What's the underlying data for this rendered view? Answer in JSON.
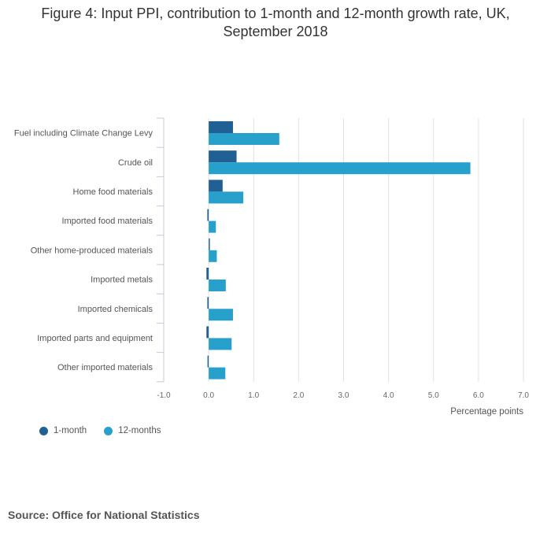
{
  "title_lines": [
    "Figure 4: Input PPI, contribution to 1-month and 12-month growth rate, UK,",
    "September 2018"
  ],
  "source": "Source: Office for National Statistics",
  "colors": {
    "one_month": "#206095",
    "twelve_months": "#27a0cc",
    "grid": "#e2e2e2",
    "axis": "#c8c8d8"
  },
  "chart_data": {
    "type": "bar",
    "orientation": "horizontal",
    "categories": [
      "Fuel including Climate Change Levy",
      "Crude oil",
      "Home food materials",
      "Imported food materials",
      "Other home-produced materials",
      "Imported metals",
      "Imported chemicals",
      "Imported parts and equipment",
      "Other imported materials"
    ],
    "series": [
      {
        "name": "1-month",
        "values": [
          0.54,
          0.62,
          0.31,
          -0.03,
          0.0,
          -0.05,
          -0.03,
          -0.05,
          -0.02
        ]
      },
      {
        "name": "12-months",
        "values": [
          1.57,
          5.82,
          0.77,
          0.16,
          0.18,
          0.38,
          0.54,
          0.51,
          0.37
        ]
      }
    ],
    "xlabel": "Percentage points",
    "xlim": [
      -1.0,
      7.0
    ],
    "xticks": [
      "-1.0",
      "0.0",
      "1.0",
      "2.0",
      "3.0",
      "4.0",
      "5.0",
      "6.0",
      "7.0"
    ],
    "grid": true,
    "legend_position": "bottom-left"
  }
}
